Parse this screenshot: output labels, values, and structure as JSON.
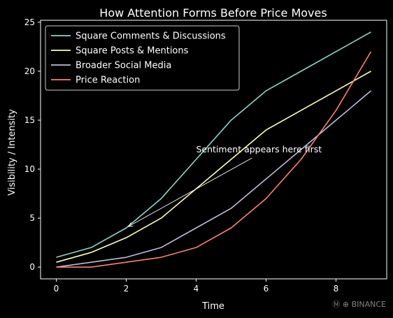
{
  "chart_data": {
    "type": "line",
    "title": "How Attention Forms Before Price Moves",
    "xlabel": "Time",
    "ylabel": "Visibility / Intensity",
    "xlim": [
      -0.45,
      9.45
    ],
    "ylim": [
      -1.2,
      25.2
    ],
    "xticks": [
      0,
      2,
      4,
      6,
      8
    ],
    "yticks": [
      0,
      5,
      10,
      15,
      20,
      25
    ],
    "grid": false,
    "legend": "top-left",
    "x": [
      0,
      1,
      2,
      3,
      4,
      5,
      6,
      7,
      8,
      9
    ],
    "series": [
      {
        "name": "Square Comments & Discussions",
        "color": "#8dd3c7",
        "values": [
          1,
          2,
          4,
          7,
          11,
          15,
          18,
          20,
          22,
          24
        ]
      },
      {
        "name": "Square Posts & Mentions",
        "color": "#feffb3",
        "values": [
          0.5,
          1.5,
          3,
          5,
          8,
          11,
          14,
          16,
          18,
          20
        ]
      },
      {
        "name": "Broader Social Media",
        "color": "#bfbbd9",
        "values": [
          0,
          0.5,
          1,
          2,
          4,
          6,
          9,
          12,
          15,
          18
        ]
      },
      {
        "name": "Price Reaction",
        "color": "#fa8174",
        "values": [
          0,
          0,
          0.5,
          1,
          2,
          4,
          7,
          11,
          16,
          22
        ]
      }
    ],
    "annotations": [
      {
        "text": "Sentiment appears here first",
        "x": 2,
        "y": 4,
        "text_x": 4,
        "text_y": 12
      }
    ]
  },
  "watermark": "Ⓜ ⊕ BINANCE"
}
